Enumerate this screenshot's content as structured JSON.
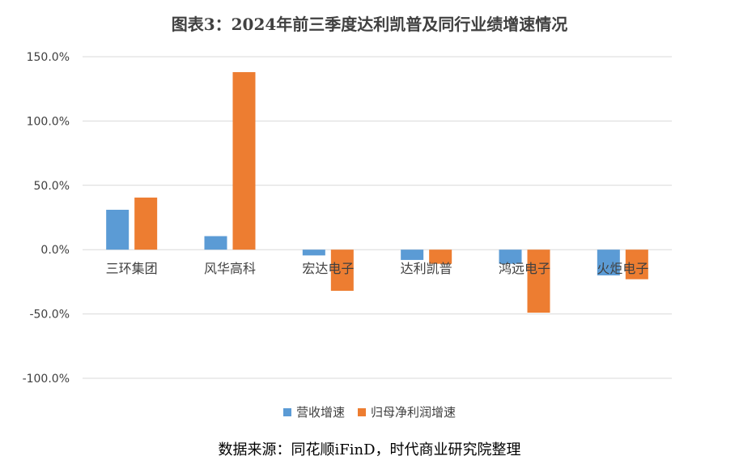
{
  "chart_data": {
    "type": "bar",
    "title": "图表3：2024年前三季度达利凯普及同行业绩增速情况",
    "categories": [
      "三环集团",
      "风华高科",
      "宏达电子",
      "达利凯普",
      "鸿远电子",
      "火炬电子"
    ],
    "series": [
      {
        "name": "营收增速",
        "color": "#5B9BD5",
        "values": [
          31.0,
          10.5,
          -4.5,
          -8.0,
          -11.0,
          -20.0
        ]
      },
      {
        "name": "归母净利润增速",
        "color": "#ED7D31",
        "values": [
          40.5,
          138.0,
          -32.0,
          -11.0,
          -49.0,
          -23.0
        ]
      }
    ],
    "ylim": [
      -100,
      150
    ],
    "yticks": [
      150,
      100,
      50,
      0,
      -50,
      -100
    ],
    "ytick_labels": [
      "150.0%",
      "100.0%",
      "50.0%",
      "0.0%",
      "-50.0%",
      "-100.0%"
    ],
    "grid": true,
    "legend_position": "bottom",
    "xlabel": "",
    "ylabel": ""
  },
  "source_note": "数据来源：同花顺iFinD，时代商业研究院整理"
}
